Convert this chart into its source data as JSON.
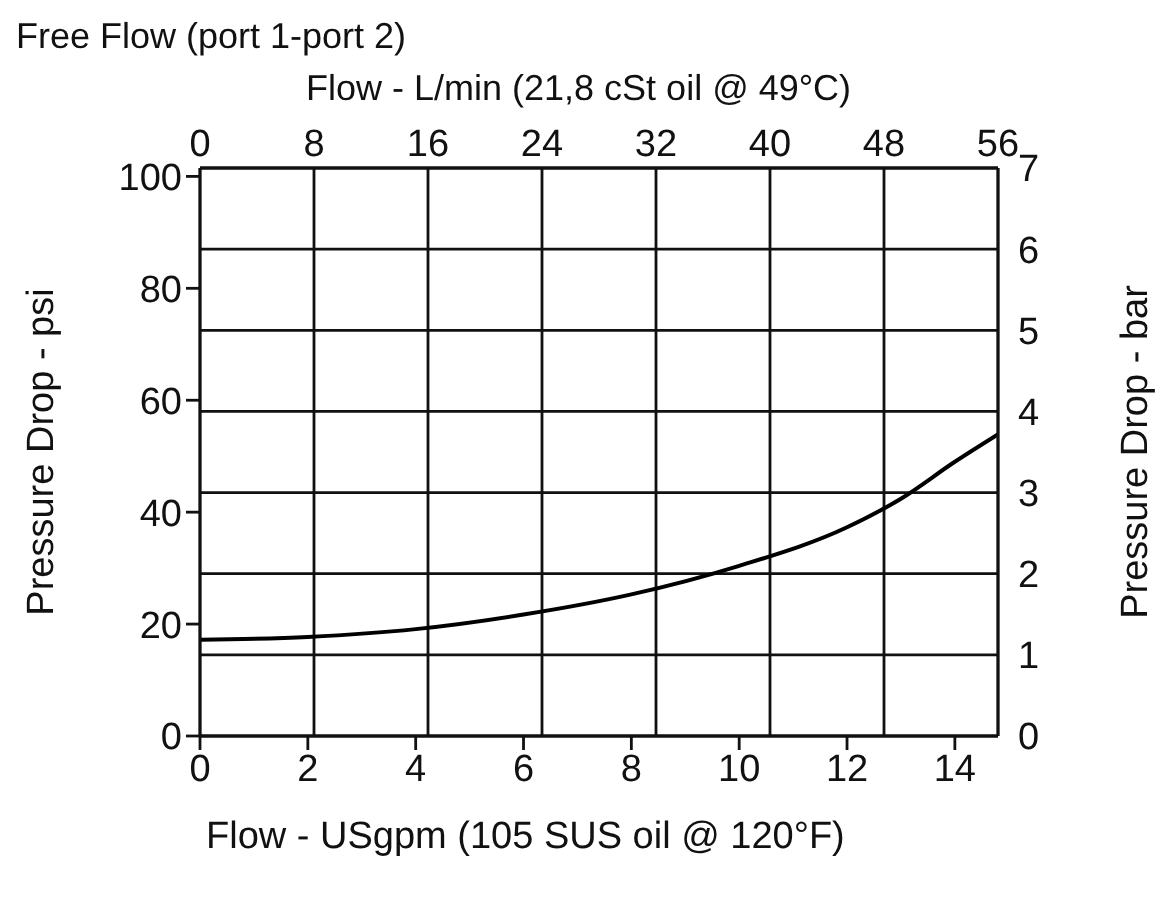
{
  "chart_data": {
    "type": "line",
    "title": "Free Flow (port 1-port 2)",
    "x2label": "Flow - L/min (21,8 cSt oil @ 49°C)",
    "xlabel": "Flow - USgpm (105 SUS oil @ 120°F)",
    "ylabel": "Pressure Drop - psi",
    "y2label": "Pressure Drop - bar",
    "x": [
      0,
      2,
      4,
      6,
      8,
      10,
      12,
      13,
      14,
      14.8
    ],
    "series": [
      {
        "color": "#000000",
        "values": [
          17.2,
          17.7,
          19.1,
          21.7,
          25.3,
          30.4,
          37.3,
          42.4,
          49,
          53.9
        ]
      }
    ],
    "xlim": [
      0,
      14.8
    ],
    "xticks": [
      0,
      2,
      4,
      6,
      8,
      10,
      12,
      14
    ],
    "x2lim": [
      0,
      56
    ],
    "x2ticks": [
      0,
      8,
      16,
      24,
      32,
      40,
      48,
      56
    ],
    "ylim": [
      0,
      101.5
    ],
    "yticks": [
      0,
      20,
      40,
      60,
      80,
      100
    ],
    "y2lim": [
      0,
      7
    ],
    "y2ticks": [
      0,
      1,
      2,
      3,
      4,
      5,
      6,
      7
    ],
    "grid": true,
    "legend": false,
    "marker": "none",
    "line_style": "solid"
  }
}
